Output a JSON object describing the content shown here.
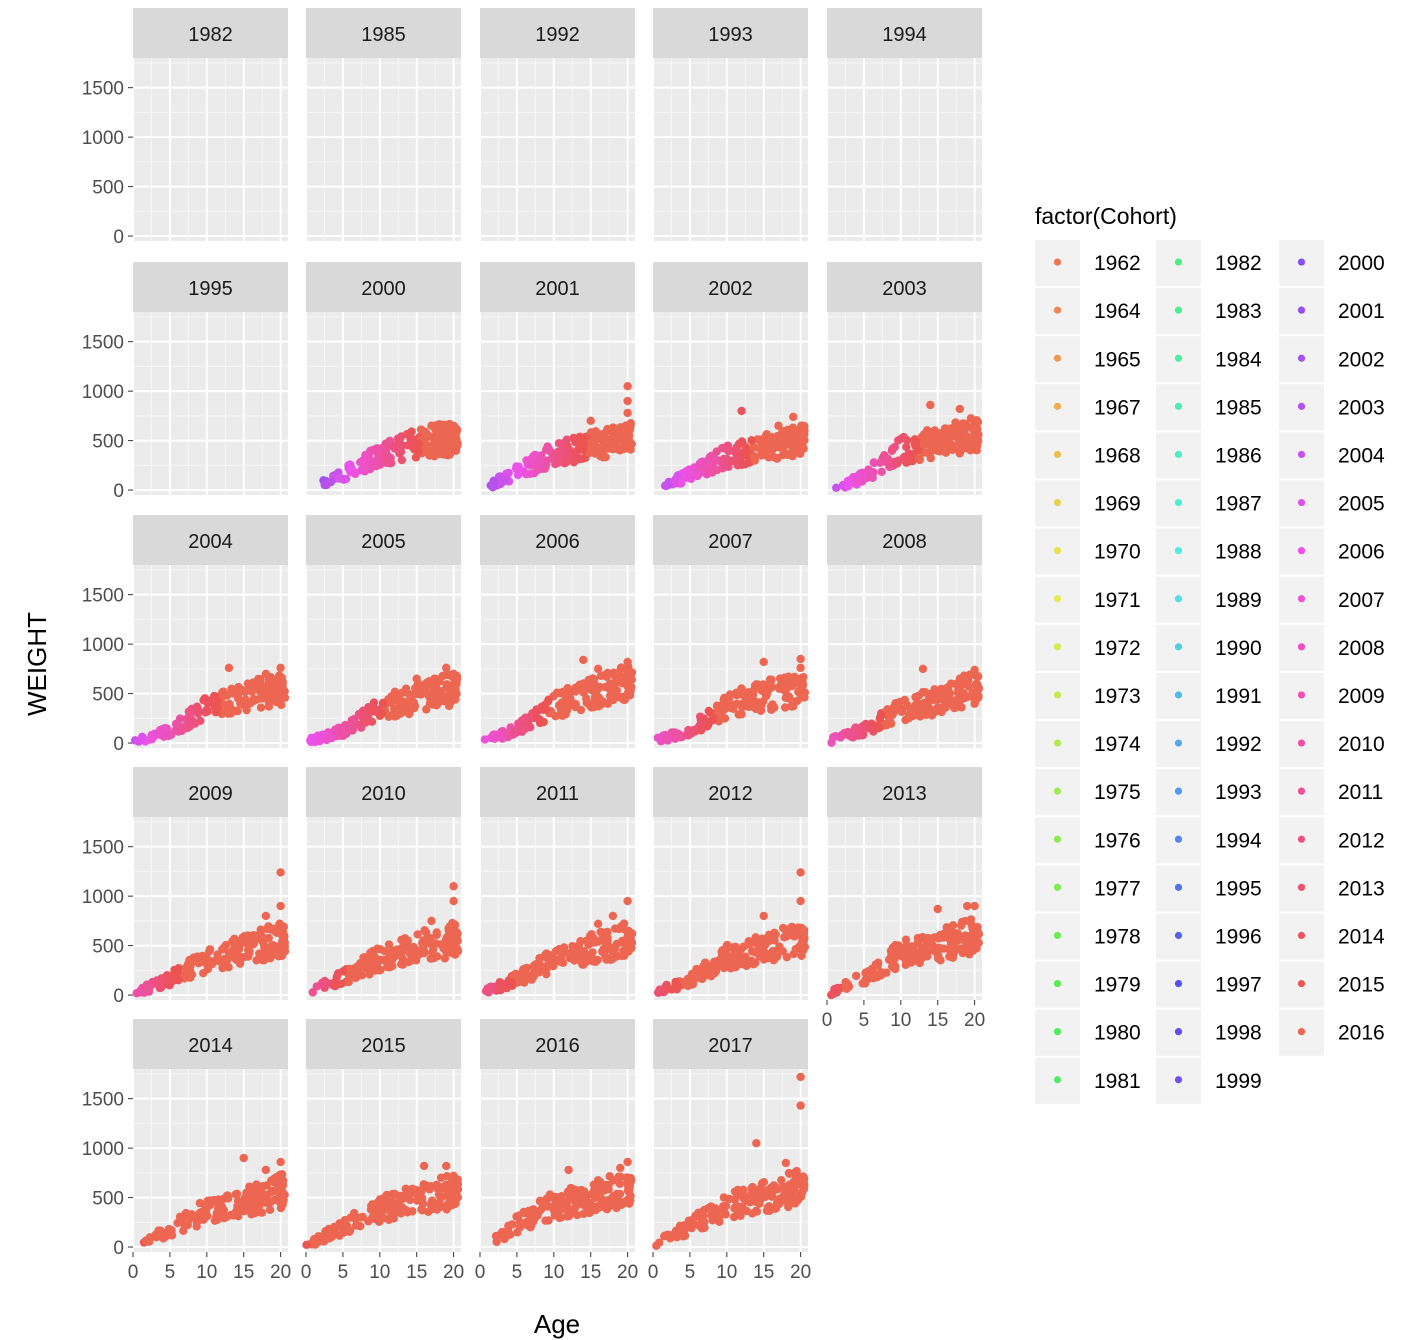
{
  "chart_data": {
    "type": "scatter",
    "facet_by": "Cohort",
    "xlabel": "Age",
    "ylabel": "WEIGHT",
    "xlim": [
      0,
      21
    ],
    "ylim": [
      -50,
      1800
    ],
    "x_ticks": [
      0,
      5,
      10,
      15,
      20
    ],
    "y_ticks": [
      0,
      500,
      1000,
      1500
    ],
    "grid": true,
    "legend": {
      "title": "factor(Cohort)",
      "position": "right",
      "columns": [
        [
          "1962",
          "1964",
          "1965",
          "1967",
          "1968",
          "1969",
          "1970",
          "1971",
          "1972",
          "1973",
          "1974",
          "1975",
          "1976",
          "1977",
          "1978",
          "1979",
          "1980",
          "1981"
        ],
        [
          "1982",
          "1983",
          "1984",
          "1985",
          "1986",
          "1987",
          "1988",
          "1989",
          "1990",
          "1991",
          "1992",
          "1993",
          "1994",
          "1995",
          "1996",
          "1997",
          "1998",
          "1999"
        ],
        [
          "2000",
          "2001",
          "2002",
          "2003",
          "2004",
          "2005",
          "2006",
          "2007",
          "2008",
          "2009",
          "2010",
          "2011",
          "2012",
          "2013",
          "2014",
          "2015",
          "2016"
        ]
      ]
    },
    "facets": [
      {
        "label": "1982",
        "max_age": 0,
        "trend": [],
        "top_points": []
      },
      {
        "label": "1985",
        "max_age": 0,
        "trend": [],
        "top_points": []
      },
      {
        "label": "1992",
        "max_age": 0,
        "trend": [],
        "top_points": []
      },
      {
        "label": "1993",
        "max_age": 0,
        "trend": [],
        "top_points": []
      },
      {
        "label": "1994",
        "max_age": 0,
        "trend": [],
        "top_points": []
      },
      {
        "label": "1995",
        "max_age": 0,
        "trend": [],
        "top_points": []
      },
      {
        "label": "2000",
        "max_age": 20,
        "min_age": 2,
        "trend": [
          [
            2,
            50
          ],
          [
            5,
            150
          ],
          [
            10,
            350
          ],
          [
            15,
            480
          ],
          [
            20,
            520
          ]
        ],
        "top_points": [
          [
            17,
            650
          ],
          [
            19,
            600
          ],
          [
            20,
            580
          ]
        ]
      },
      {
        "label": "2001",
        "max_age": 20,
        "min_age": 1,
        "trend": [
          [
            1,
            30
          ],
          [
            5,
            180
          ],
          [
            10,
            360
          ],
          [
            15,
            460
          ],
          [
            20,
            520
          ]
        ],
        "top_points": [
          [
            20,
            1050
          ],
          [
            20,
            900
          ],
          [
            20,
            780
          ],
          [
            15,
            700
          ]
        ]
      },
      {
        "label": "2002",
        "max_age": 20,
        "min_age": 1,
        "trend": [
          [
            1,
            30
          ],
          [
            5,
            150
          ],
          [
            10,
            350
          ],
          [
            15,
            420
          ],
          [
            20,
            520
          ]
        ],
        "top_points": [
          [
            12,
            800
          ],
          [
            19,
            740
          ],
          [
            17,
            650
          ]
        ]
      },
      {
        "label": "2003",
        "max_age": 20,
        "min_age": 1,
        "trend": [
          [
            1,
            20
          ],
          [
            5,
            130
          ],
          [
            10,
            400
          ],
          [
            15,
            480
          ],
          [
            20,
            580
          ]
        ],
        "top_points": [
          [
            14,
            860
          ],
          [
            18,
            820
          ],
          [
            20,
            680
          ]
        ]
      },
      {
        "label": "2004",
        "max_age": 20,
        "min_age": 0,
        "trend": [
          [
            0,
            10
          ],
          [
            5,
            120
          ],
          [
            10,
            350
          ],
          [
            15,
            450
          ],
          [
            20,
            560
          ]
        ],
        "top_points": [
          [
            13,
            760
          ],
          [
            20,
            760
          ],
          [
            18,
            700
          ]
        ]
      },
      {
        "label": "2005",
        "max_age": 20,
        "min_age": 0,
        "trend": [
          [
            0,
            10
          ],
          [
            5,
            120
          ],
          [
            10,
            350
          ],
          [
            15,
            450
          ],
          [
            20,
            560
          ]
        ],
        "top_points": [
          [
            19,
            760
          ],
          [
            15,
            650
          ],
          [
            20,
            700
          ]
        ]
      },
      {
        "label": "2006",
        "max_age": 20,
        "min_age": 0,
        "trend": [
          [
            0,
            10
          ],
          [
            5,
            130
          ],
          [
            10,
            380
          ],
          [
            15,
            500
          ],
          [
            20,
            600
          ]
        ],
        "top_points": [
          [
            14,
            840
          ],
          [
            20,
            820
          ],
          [
            16,
            750
          ]
        ]
      },
      {
        "label": "2007",
        "max_age": 20,
        "min_age": 0,
        "trend": [
          [
            0,
            10
          ],
          [
            5,
            130
          ],
          [
            10,
            380
          ],
          [
            15,
            470
          ],
          [
            20,
            560
          ]
        ],
        "top_points": [
          [
            20,
            850
          ],
          [
            15,
            820
          ],
          [
            20,
            760
          ]
        ]
      },
      {
        "label": "2008",
        "max_age": 20,
        "min_age": 0,
        "trend": [
          [
            0,
            10
          ],
          [
            5,
            140
          ],
          [
            10,
            330
          ],
          [
            15,
            430
          ],
          [
            20,
            560
          ]
        ],
        "top_points": [
          [
            13,
            750
          ],
          [
            20,
            740
          ],
          [
            18,
            650
          ]
        ]
      },
      {
        "label": "2009",
        "max_age": 20,
        "min_age": 0,
        "trend": [
          [
            0,
            10
          ],
          [
            5,
            160
          ],
          [
            10,
            350
          ],
          [
            15,
            460
          ],
          [
            20,
            560
          ]
        ],
        "top_points": [
          [
            20,
            1240
          ],
          [
            20,
            900
          ],
          [
            18,
            800
          ]
        ]
      },
      {
        "label": "2010",
        "max_age": 20,
        "min_age": 0,
        "trend": [
          [
            0,
            10
          ],
          [
            5,
            180
          ],
          [
            10,
            370
          ],
          [
            15,
            480
          ],
          [
            20,
            560
          ]
        ],
        "top_points": [
          [
            20,
            1100
          ],
          [
            20,
            950
          ],
          [
            17,
            750
          ]
        ]
      },
      {
        "label": "2011",
        "max_age": 20,
        "min_age": 0,
        "trend": [
          [
            0,
            10
          ],
          [
            5,
            160
          ],
          [
            10,
            360
          ],
          [
            15,
            470
          ],
          [
            20,
            560
          ]
        ],
        "top_points": [
          [
            20,
            950
          ],
          [
            18,
            800
          ],
          [
            16,
            720
          ]
        ]
      },
      {
        "label": "2012",
        "max_age": 20,
        "min_age": 0,
        "trend": [
          [
            0,
            10
          ],
          [
            5,
            160
          ],
          [
            10,
            380
          ],
          [
            15,
            470
          ],
          [
            20,
            560
          ]
        ],
        "top_points": [
          [
            20,
            1240
          ],
          [
            20,
            950
          ],
          [
            15,
            800
          ]
        ]
      },
      {
        "label": "2013",
        "max_age": 20,
        "min_age": 0,
        "trend": [
          [
            0,
            10
          ],
          [
            5,
            170
          ],
          [
            10,
            420
          ],
          [
            15,
            500
          ],
          [
            20,
            600
          ]
        ],
        "top_points": [
          [
            19,
            900
          ],
          [
            15,
            870
          ],
          [
            20,
            900
          ]
        ]
      },
      {
        "label": "2014",
        "max_age": 20,
        "min_age": 1,
        "trend": [
          [
            1,
            10
          ],
          [
            5,
            180
          ],
          [
            10,
            370
          ],
          [
            15,
            460
          ],
          [
            20,
            560
          ]
        ],
        "top_points": [
          [
            15,
            900
          ],
          [
            20,
            860
          ],
          [
            18,
            780
          ]
        ]
      },
      {
        "label": "2015",
        "max_age": 20,
        "min_age": 0,
        "trend": [
          [
            0,
            10
          ],
          [
            5,
            200
          ],
          [
            10,
            380
          ],
          [
            15,
            480
          ],
          [
            20,
            560
          ]
        ],
        "top_points": [
          [
            19,
            820
          ],
          [
            16,
            820
          ],
          [
            20,
            720
          ]
        ]
      },
      {
        "label": "2016",
        "max_age": 20,
        "min_age": 1,
        "trend": [
          [
            1,
            10
          ],
          [
            5,
            230
          ],
          [
            10,
            420
          ],
          [
            15,
            500
          ],
          [
            20,
            600
          ]
        ],
        "top_points": [
          [
            20,
            860
          ],
          [
            19,
            800
          ],
          [
            12,
            780
          ]
        ]
      },
      {
        "label": "2017",
        "max_age": 20,
        "min_age": 0,
        "trend": [
          [
            0,
            10
          ],
          [
            5,
            210
          ],
          [
            10,
            420
          ],
          [
            15,
            520
          ],
          [
            20,
            600
          ]
        ],
        "top_points": [
          [
            20,
            1720
          ],
          [
            20,
            1430
          ],
          [
            14,
            1050
          ],
          [
            18,
            850
          ]
        ]
      }
    ]
  }
}
